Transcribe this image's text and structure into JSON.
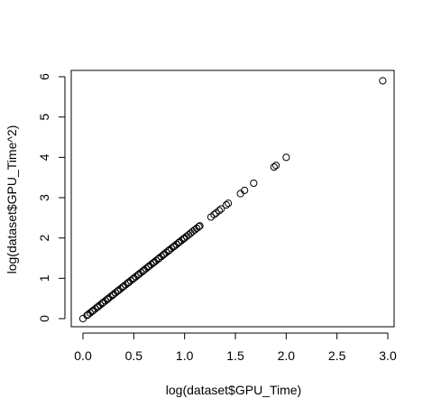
{
  "chart_data": {
    "type": "scatter",
    "xlabel": "log(dataset$GPU_Time)",
    "ylabel": "log(dataset$GPU_Time^2)",
    "xlim": [
      0.0,
      3.0
    ],
    "ylim": [
      0,
      6
    ],
    "x_ticks": [
      "0.0",
      "0.5",
      "1.0",
      "1.5",
      "2.0",
      "2.5",
      "3.0"
    ],
    "y_ticks": [
      "0",
      "1",
      "2",
      "3",
      "4",
      "5",
      "6"
    ],
    "grid": false,
    "series": [
      {
        "points": [
          [
            0.0,
            0.0
          ],
          [
            0.04,
            0.08
          ],
          [
            0.05,
            0.1
          ],
          [
            0.07,
            0.14
          ],
          [
            0.09,
            0.18
          ],
          [
            0.1,
            0.2
          ],
          [
            0.12,
            0.24
          ],
          [
            0.14,
            0.28
          ],
          [
            0.15,
            0.3
          ],
          [
            0.17,
            0.34
          ],
          [
            0.19,
            0.38
          ],
          [
            0.2,
            0.4
          ],
          [
            0.22,
            0.44
          ],
          [
            0.24,
            0.48
          ],
          [
            0.25,
            0.5
          ],
          [
            0.27,
            0.54
          ],
          [
            0.29,
            0.58
          ],
          [
            0.3,
            0.6
          ],
          [
            0.32,
            0.64
          ],
          [
            0.34,
            0.68
          ],
          [
            0.35,
            0.7
          ],
          [
            0.37,
            0.74
          ],
          [
            0.39,
            0.78
          ],
          [
            0.4,
            0.8
          ],
          [
            0.42,
            0.84
          ],
          [
            0.44,
            0.88
          ],
          [
            0.45,
            0.9
          ],
          [
            0.47,
            0.94
          ],
          [
            0.49,
            0.98
          ],
          [
            0.5,
            1.0
          ],
          [
            0.52,
            1.04
          ],
          [
            0.54,
            1.08
          ],
          [
            0.55,
            1.1
          ],
          [
            0.57,
            1.14
          ],
          [
            0.59,
            1.18
          ],
          [
            0.6,
            1.2
          ],
          [
            0.62,
            1.24
          ],
          [
            0.64,
            1.28
          ],
          [
            0.65,
            1.3
          ],
          [
            0.67,
            1.34
          ],
          [
            0.69,
            1.38
          ],
          [
            0.7,
            1.4
          ],
          [
            0.72,
            1.44
          ],
          [
            0.74,
            1.48
          ],
          [
            0.75,
            1.5
          ],
          [
            0.77,
            1.54
          ],
          [
            0.79,
            1.58
          ],
          [
            0.8,
            1.6
          ],
          [
            0.82,
            1.64
          ],
          [
            0.84,
            1.68
          ],
          [
            0.85,
            1.7
          ],
          [
            0.87,
            1.74
          ],
          [
            0.89,
            1.78
          ],
          [
            0.9,
            1.8
          ],
          [
            0.92,
            1.84
          ],
          [
            0.94,
            1.88
          ],
          [
            0.95,
            1.9
          ],
          [
            0.97,
            1.94
          ],
          [
            0.99,
            1.98
          ],
          [
            1.0,
            2.0
          ],
          [
            1.02,
            2.04
          ],
          [
            1.04,
            2.08
          ],
          [
            1.06,
            2.12
          ],
          [
            1.08,
            2.16
          ],
          [
            1.1,
            2.2
          ],
          [
            1.12,
            2.24
          ],
          [
            1.14,
            2.28
          ],
          [
            1.15,
            2.3
          ],
          [
            1.26,
            2.52
          ],
          [
            1.29,
            2.58
          ],
          [
            1.31,
            2.62
          ],
          [
            1.34,
            2.68
          ],
          [
            1.36,
            2.72
          ],
          [
            1.41,
            2.82
          ],
          [
            1.43,
            2.86
          ],
          [
            1.55,
            3.1
          ],
          [
            1.59,
            3.18
          ],
          [
            1.68,
            3.36
          ],
          [
            1.88,
            3.76
          ],
          [
            1.9,
            3.8
          ],
          [
            2.0,
            4.0
          ],
          [
            2.95,
            5.9
          ]
        ]
      }
    ]
  }
}
